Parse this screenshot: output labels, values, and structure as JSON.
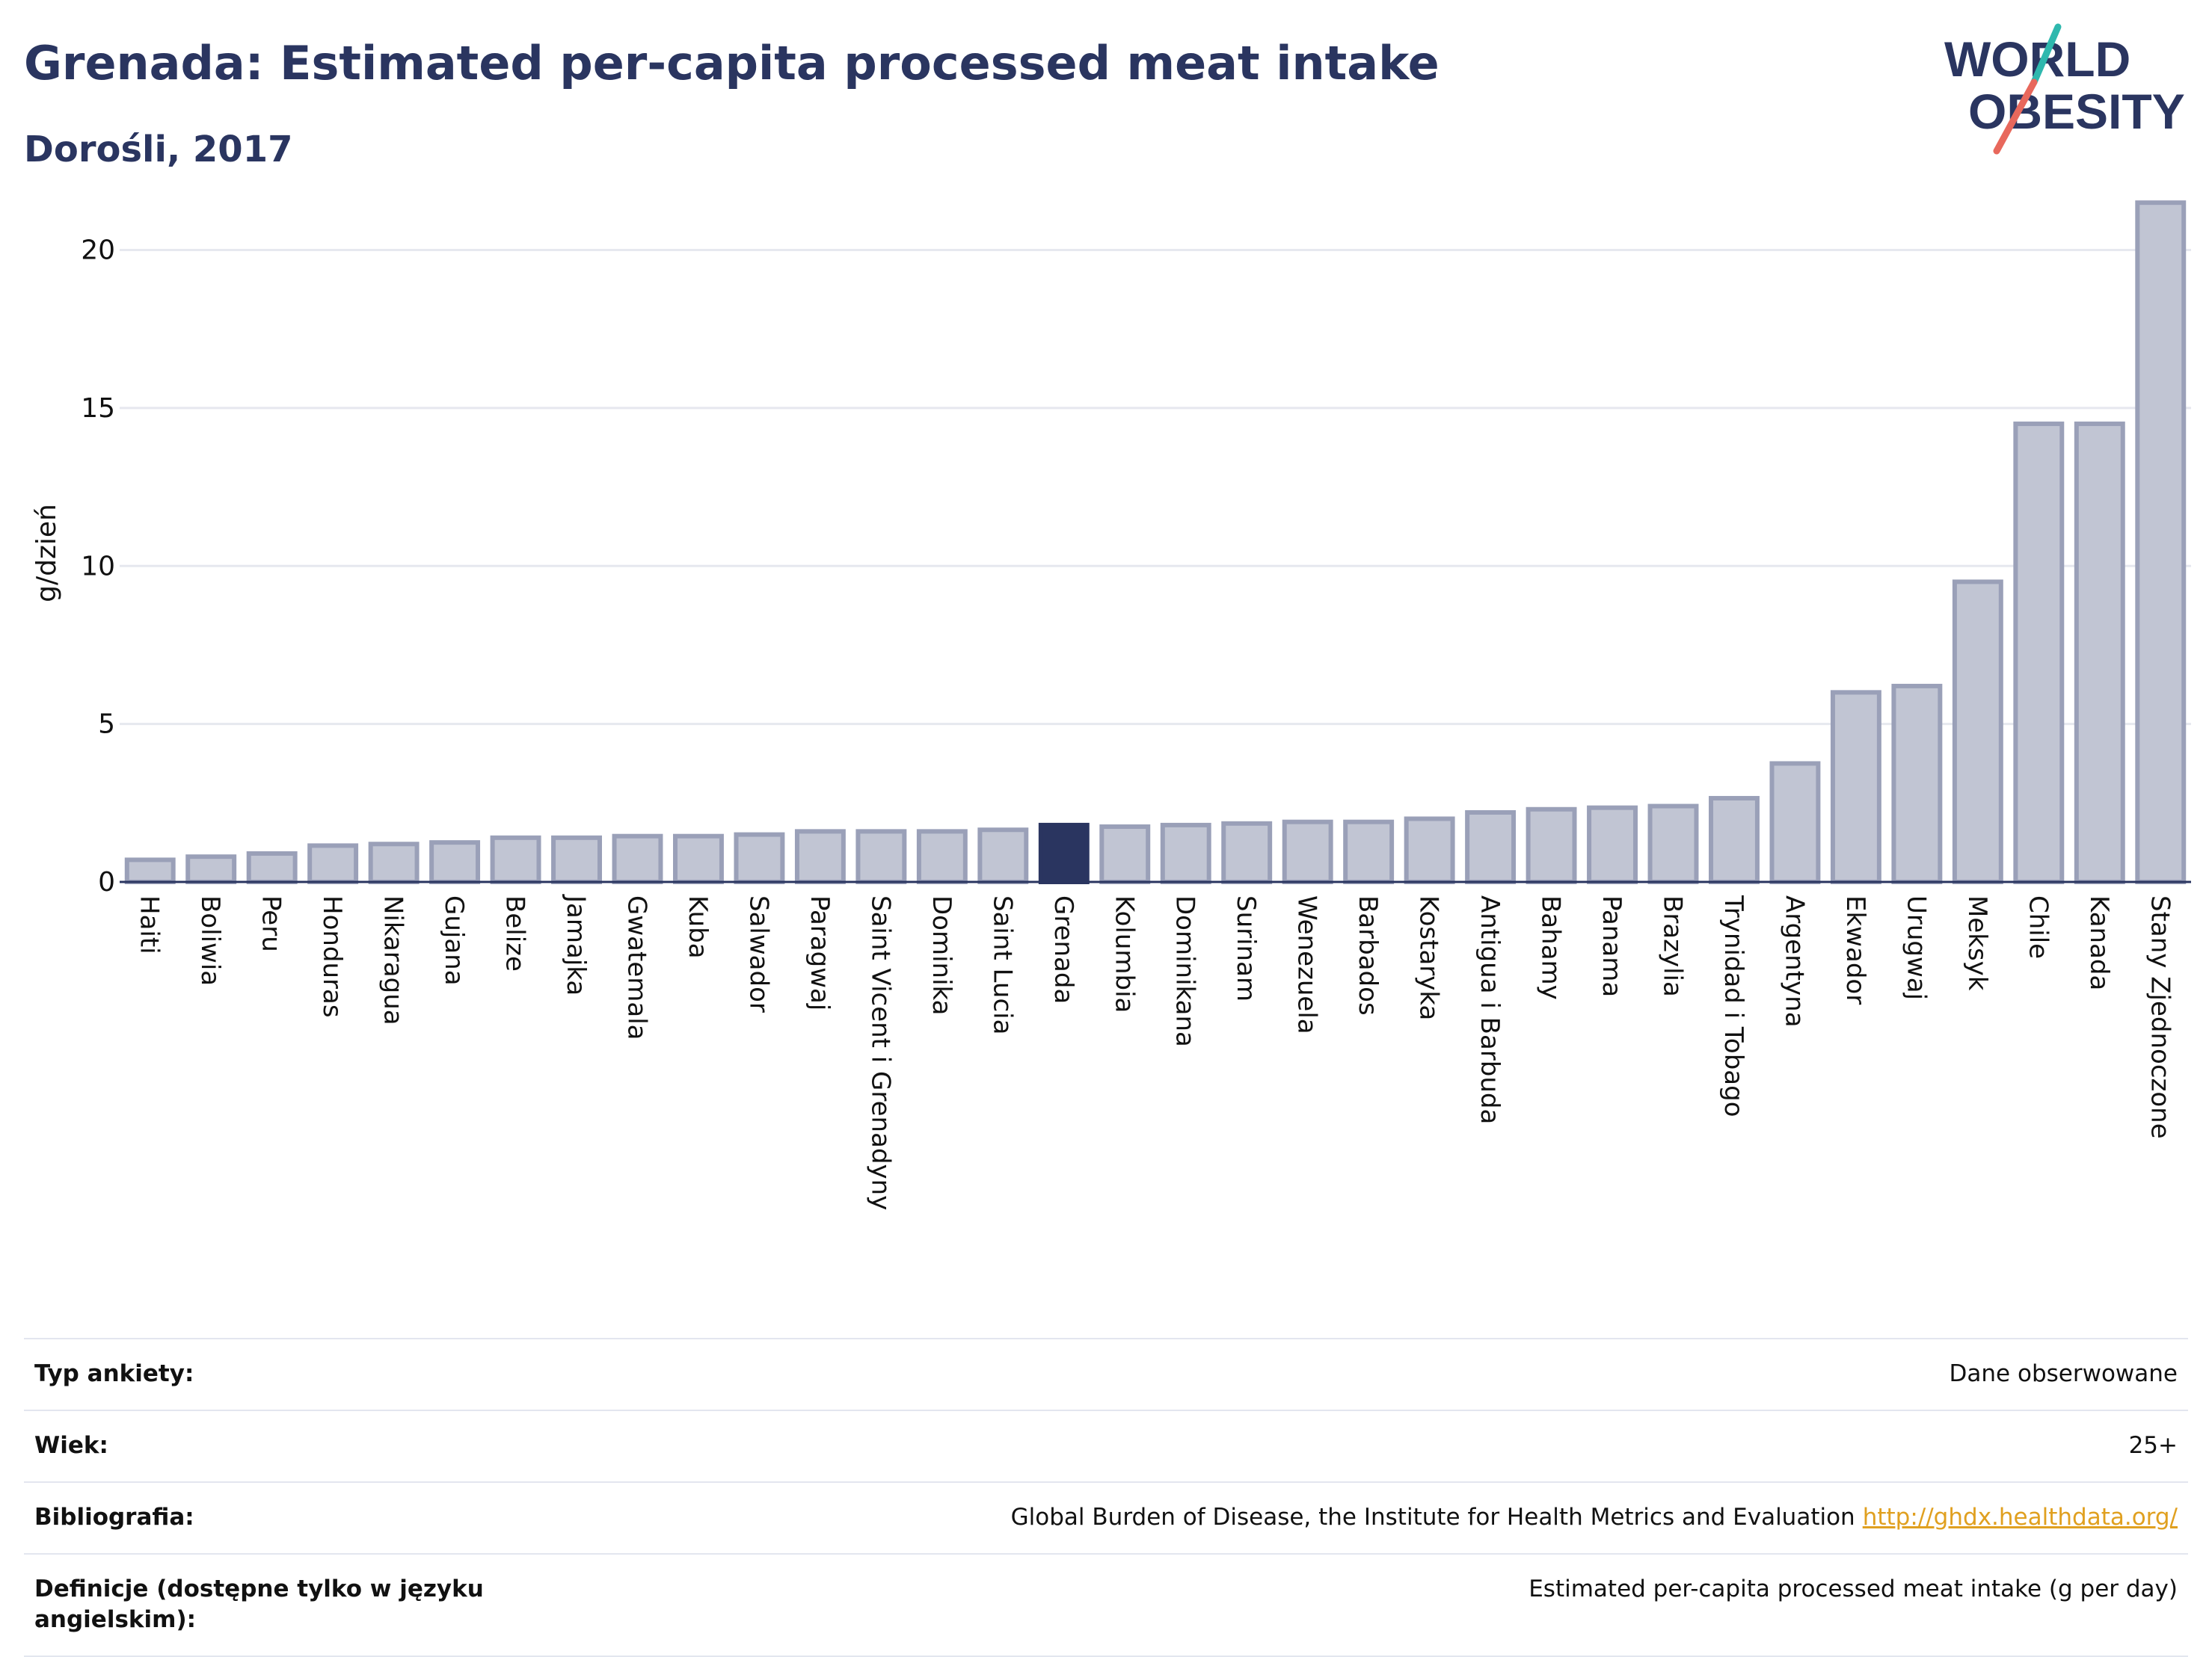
{
  "header": {
    "title": "Grenada: Estimated per-capita processed meat intake",
    "subtitle": "Dorośli, 2017"
  },
  "logo": {
    "line1": "WORLD",
    "line2": "OBESITY",
    "colors": {
      "text": "#2a3560",
      "teal": "#2fb8ae",
      "coral": "#e8685c"
    }
  },
  "chart_data": {
    "type": "bar",
    "ylabel": "g/dzień",
    "ylim": [
      0,
      22
    ],
    "yticks": [
      0,
      5,
      10,
      15,
      20
    ],
    "grid": true,
    "highlight": "Grenada",
    "colors": {
      "bar_fill": "#c1c5d3",
      "bar_stroke": "#9aa0b8",
      "highlight": "#2a3560",
      "grid": "#e6e8ef",
      "axis": "#2a3560"
    },
    "categories": [
      "Haiti",
      "Boliwia",
      "Peru",
      "Honduras",
      "Nikaragua",
      "Gujana",
      "Belize",
      "Jamajka",
      "Gwatemala",
      "Kuba",
      "Salwador",
      "Paragwaj",
      "Saint Vicent i Grenadyny",
      "Dominika",
      "Saint Lucia",
      "Grenada",
      "Kolumbia",
      "Dominikana",
      "Surinam",
      "Wenezuela",
      "Barbados",
      "Kostaryka",
      "Antigua i Barbuda",
      "Bahamy",
      "Panama",
      "Brazylia",
      "Trynidad i Tobago",
      "Argentyna",
      "Ekwador",
      "Urugwaj",
      "Meksyk",
      "Chile",
      "Kanada",
      "Stany Zjednoczone"
    ],
    "values": [
      0.7,
      0.8,
      0.9,
      1.15,
      1.2,
      1.25,
      1.4,
      1.4,
      1.45,
      1.45,
      1.5,
      1.6,
      1.6,
      1.6,
      1.65,
      1.8,
      1.75,
      1.8,
      1.85,
      1.9,
      1.9,
      2.0,
      2.2,
      2.3,
      2.35,
      2.4,
      2.65,
      3.75,
      6.0,
      6.2,
      9.5,
      14.5,
      14.5,
      21.5
    ]
  },
  "meta": [
    {
      "key": "Typ ankiety:",
      "value": "Dane obserwowane"
    },
    {
      "key": "Wiek:",
      "value": "25+"
    },
    {
      "key": "Bibliografia:",
      "value": "Global Burden of Disease, the Institute for Health Metrics and Evaluation",
      "link": "http://ghdx.healthdata.org/"
    },
    {
      "key": "Definicje (dostępne tylko w języku angielskim):",
      "value": "Estimated per-capita processed meat intake (g per day)"
    }
  ]
}
